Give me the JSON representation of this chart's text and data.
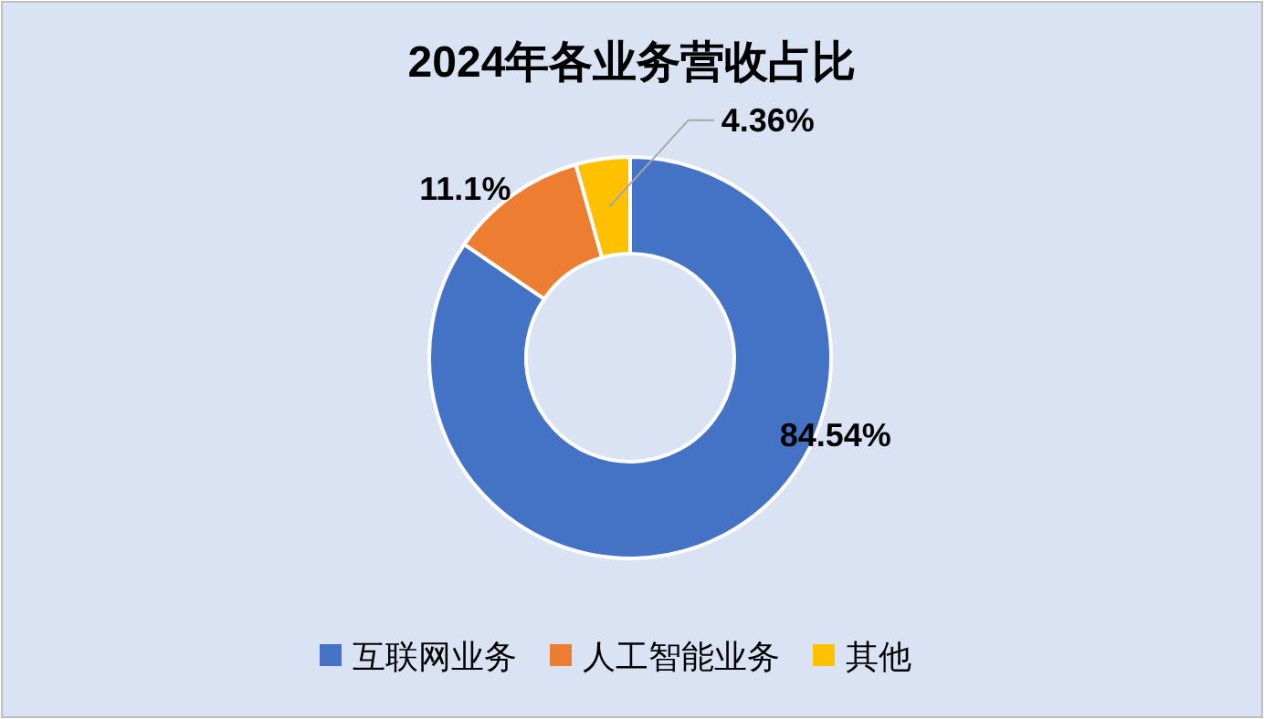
{
  "chart_data": {
    "type": "donut",
    "title": "2024年各业务营收占比",
    "categories": [
      "互联网业务",
      "人工智能业务",
      "其他"
    ],
    "values": [
      84.54,
      11.1,
      4.36
    ],
    "colors": [
      "#4472c4",
      "#ed7d31",
      "#ffc000"
    ],
    "value_labels": [
      "84.54%",
      "11.1%",
      "4.36%"
    ],
    "legend": "bottom"
  }
}
